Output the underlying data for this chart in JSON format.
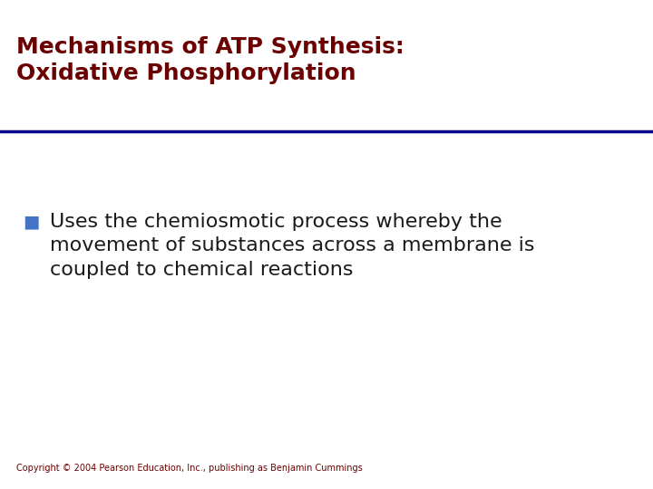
{
  "title_line1": "Mechanisms of ATP Synthesis:",
  "title_line2": "Oxidative Phosphorylation",
  "title_color": "#6B0000",
  "title_fontsize": 18,
  "separator_color": "#00008B",
  "separator_linewidth": 2.5,
  "bullet_color": "#4472C4",
  "bullet_fontsize": 14,
  "bullet_text_line1": "Uses the chemiosmotic process whereby the",
  "bullet_text_line2": "movement of substances across a membrane is",
  "bullet_text_line3": "coupled to chemical reactions",
  "body_fontsize": 16,
  "body_color": "#1a1a1a",
  "copyright_text": "Copyright © 2004 Pearson Education, Inc., publishing as Benjamin Cummings",
  "copyright_fontsize": 7,
  "copyright_color": "#6B0000",
  "bg_color": "#FFFFFF"
}
